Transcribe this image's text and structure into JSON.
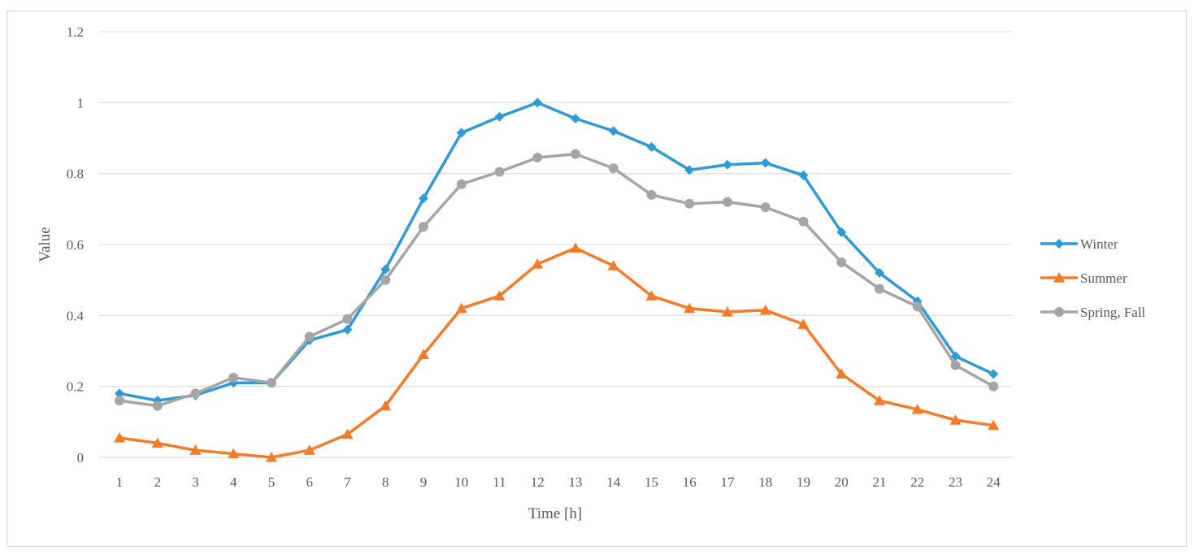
{
  "chart_data": {
    "type": "line",
    "title": "",
    "xlabel": "Time [h]",
    "ylabel": "Value",
    "ylim": [
      0,
      1.2
    ],
    "yticks": [
      0,
      0.2,
      0.4,
      0.6,
      0.8,
      1,
      1.2
    ],
    "ytick_labels": [
      "0",
      "0.2",
      "0.4",
      "0.6",
      "0.8",
      "1",
      "1.2"
    ],
    "grid": true,
    "legend_position": "right",
    "x": [
      1,
      2,
      3,
      4,
      5,
      6,
      7,
      8,
      9,
      10,
      11,
      12,
      13,
      14,
      15,
      16,
      17,
      18,
      19,
      20,
      21,
      22,
      23,
      24
    ],
    "x_labels": [
      "1",
      "2",
      "3",
      "4",
      "5",
      "6",
      "7",
      "8",
      "9",
      "10",
      "11",
      "12",
      "13",
      "14",
      "15",
      "16",
      "17",
      "18",
      "19",
      "20",
      "21",
      "22",
      "23",
      "24"
    ],
    "series": [
      {
        "name": "Winter",
        "color": "#2e9bd6",
        "marker": "diamond",
        "values": [
          0.18,
          0.16,
          0.175,
          0.21,
          0.21,
          0.33,
          0.36,
          0.53,
          0.73,
          0.915,
          0.96,
          1.0,
          0.955,
          0.92,
          0.875,
          0.81,
          0.825,
          0.83,
          0.795,
          0.635,
          0.52,
          0.44,
          0.285,
          0.235
        ]
      },
      {
        "name": "Summer",
        "color": "#f47b2a",
        "marker": "triangle",
        "values": [
          0.055,
          0.04,
          0.02,
          0.01,
          0.0,
          0.02,
          0.065,
          0.145,
          0.29,
          0.42,
          0.455,
          0.545,
          0.59,
          0.54,
          0.455,
          0.42,
          0.41,
          0.415,
          0.375,
          0.235,
          0.16,
          0.135,
          0.105,
          0.09
        ]
      },
      {
        "name": "Spring, Fall",
        "color": "#a5a5a5",
        "marker": "circle",
        "values": [
          0.16,
          0.145,
          0.18,
          0.225,
          0.21,
          0.34,
          0.39,
          0.5,
          0.65,
          0.77,
          0.805,
          0.845,
          0.855,
          0.815,
          0.74,
          0.715,
          0.72,
          0.705,
          0.665,
          0.55,
          0.475,
          0.425,
          0.26,
          0.2
        ]
      }
    ]
  }
}
